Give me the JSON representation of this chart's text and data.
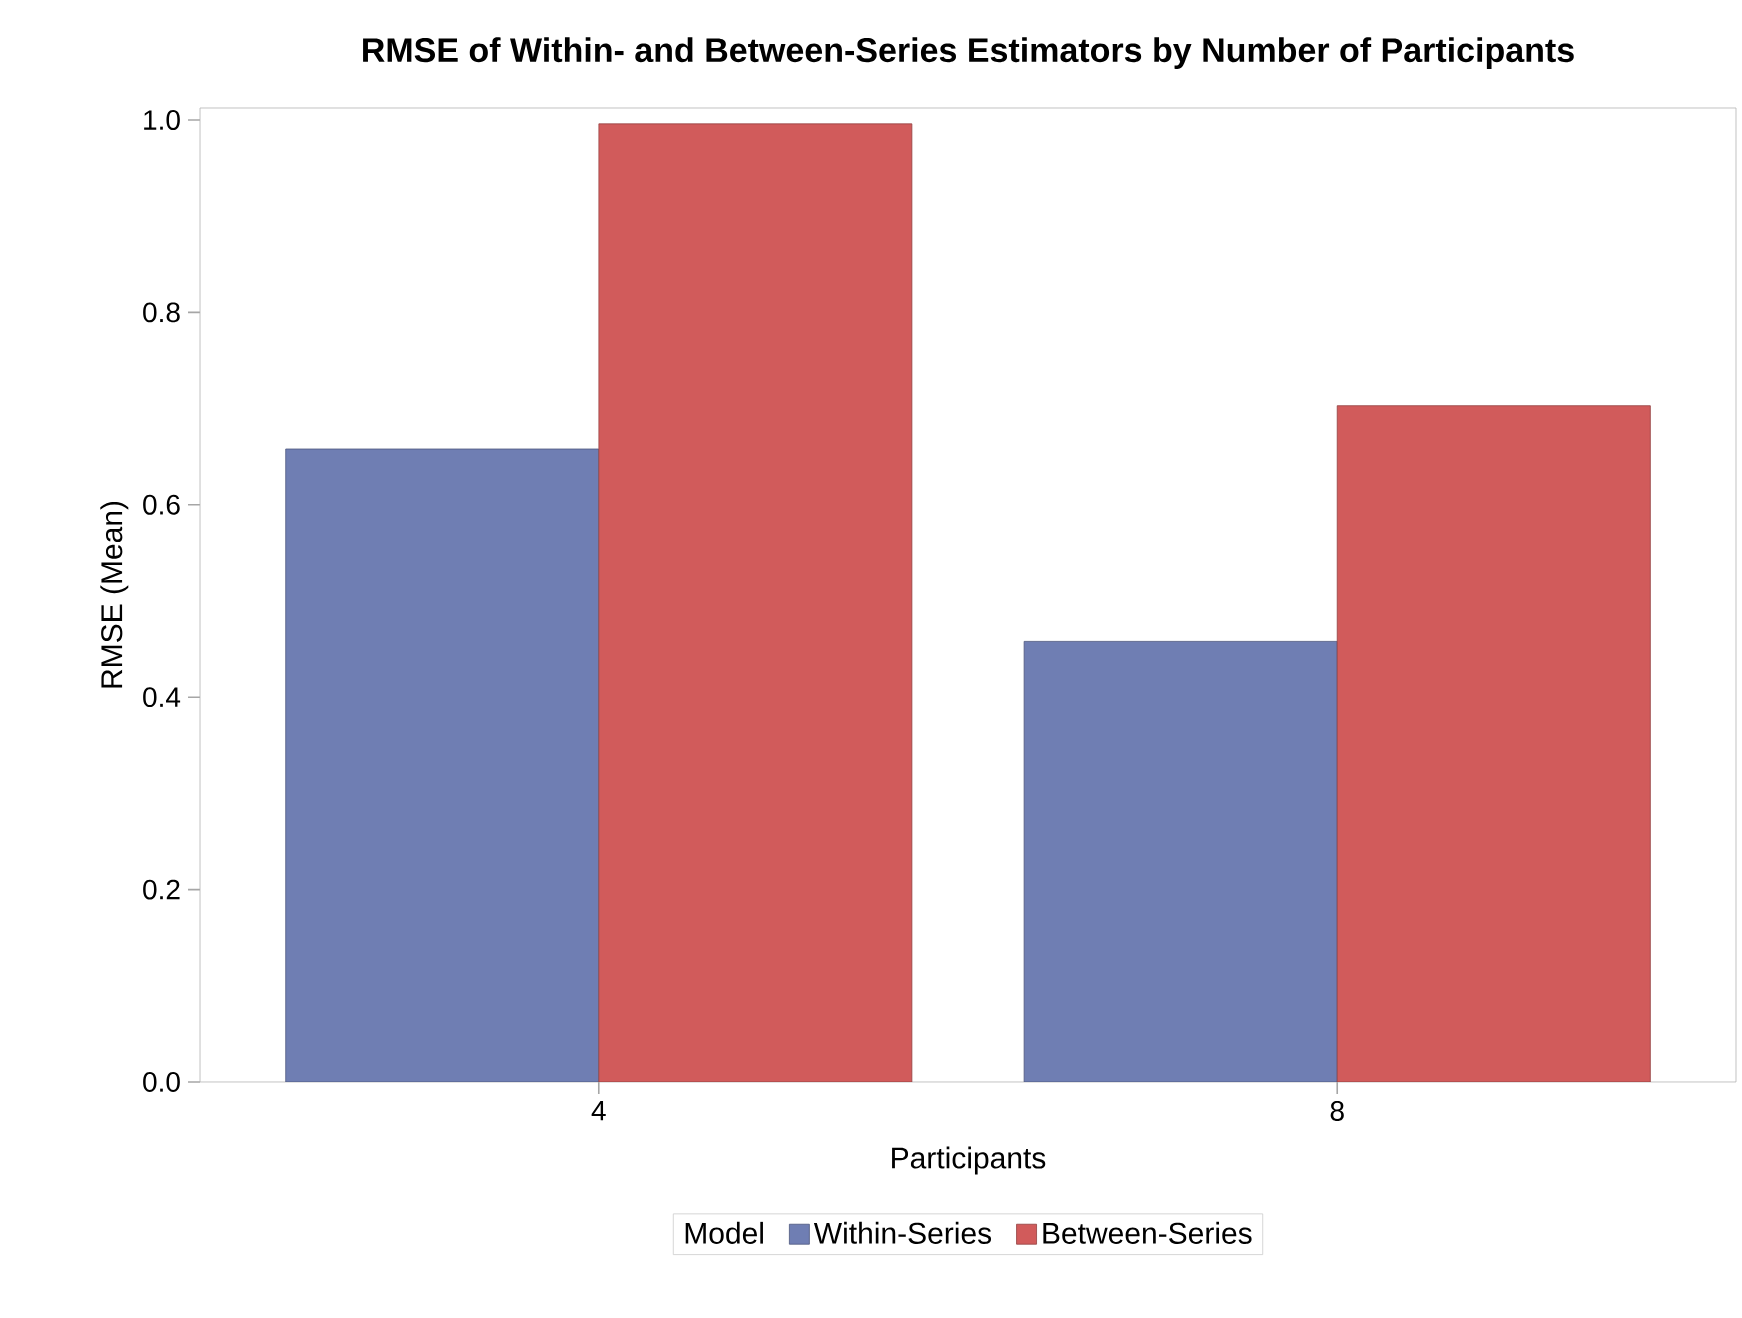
{
  "chart_data": {
    "type": "bar",
    "title": "RMSE of Within- and Between-Series Estimators by Number of Participants",
    "xlabel": "Participants",
    "ylabel": "RMSE (Mean)",
    "legend_title": "Model",
    "categories": [
      "4",
      "8"
    ],
    "series": [
      {
        "name": "Within-Series",
        "color": "#6f7eb3",
        "values": [
          0.658,
          0.458
        ]
      },
      {
        "name": "Between-Series",
        "color": "#d15b5b",
        "values": [
          0.996,
          0.703
        ]
      }
    ],
    "ylim": [
      0,
      1.0125
    ],
    "yticks": [
      {
        "value": 0,
        "label": "0.0"
      },
      {
        "value": 0.2,
        "label": "0.2"
      },
      {
        "value": 0.4,
        "label": "0.4"
      },
      {
        "value": 0.6,
        "label": "0.6"
      },
      {
        "value": 0.8,
        "label": "0.8"
      },
      {
        "value": 1,
        "label": "1.0"
      }
    ],
    "grid": false,
    "legend": "bottom"
  }
}
